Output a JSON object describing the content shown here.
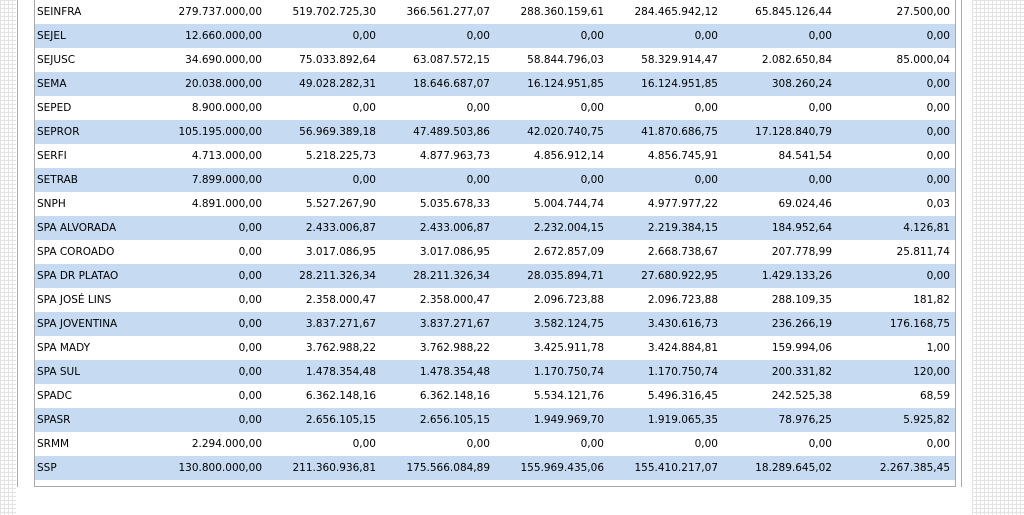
{
  "table": {
    "rows": [
      {
        "name": "SEINFRA",
        "values": [
          "279.737.000,00",
          "519.702.725,30",
          "366.561.277,07",
          "288.360.159,61",
          "284.465.942,12",
          "65.845.126,44",
          "27.500,00"
        ]
      },
      {
        "name": "SEJEL",
        "values": [
          "12.660.000,00",
          "0,00",
          "0,00",
          "0,00",
          "0,00",
          "0,00",
          "0,00"
        ]
      },
      {
        "name": "SEJUSC",
        "values": [
          "34.690.000,00",
          "75.033.892,64",
          "63.087.572,15",
          "58.844.796,03",
          "58.329.914,47",
          "2.082.650,84",
          "85.000,04"
        ]
      },
      {
        "name": "SEMA",
        "values": [
          "20.038.000,00",
          "49.028.282,31",
          "18.646.687,07",
          "16.124.951,85",
          "16.124.951,85",
          "308.260,24",
          "0,00"
        ]
      },
      {
        "name": "SEPED",
        "values": [
          "8.900.000,00",
          "0,00",
          "0,00",
          "0,00",
          "0,00",
          "0,00",
          "0,00"
        ]
      },
      {
        "name": "SEPROR",
        "values": [
          "105.195.000,00",
          "56.969.389,18",
          "47.489.503,86",
          "42.020.740,75",
          "41.870.686,75",
          "17.128.840,79",
          "0,00"
        ]
      },
      {
        "name": "SERFI",
        "values": [
          "4.713.000,00",
          "5.218.225,73",
          "4.877.963,73",
          "4.856.912,14",
          "4.856.745,91",
          "84.541,54",
          "0,00"
        ]
      },
      {
        "name": "SETRAB",
        "values": [
          "7.899.000,00",
          "0,00",
          "0,00",
          "0,00",
          "0,00",
          "0,00",
          "0,00"
        ]
      },
      {
        "name": "SNPH",
        "values": [
          "4.891.000,00",
          "5.527.267,90",
          "5.035.678,33",
          "5.004.744,74",
          "4.977.977,22",
          "69.024,46",
          "0,03"
        ]
      },
      {
        "name": "SPA ALVORADA",
        "values": [
          "0,00",
          "2.433.006,87",
          "2.433.006,87",
          "2.232.004,15",
          "2.219.384,15",
          "184.952,64",
          "4.126,81"
        ]
      },
      {
        "name": "SPA COROADO",
        "values": [
          "0,00",
          "3.017.086,95",
          "3.017.086,95",
          "2.672.857,09",
          "2.668.738,67",
          "207.778,99",
          "25.811,74"
        ]
      },
      {
        "name": "SPA DR PLATAO",
        "values": [
          "0,00",
          "28.211.326,34",
          "28.211.326,34",
          "28.035.894,71",
          "27.680.922,95",
          "1.429.133,26",
          "0,00"
        ]
      },
      {
        "name": "SPA JOSÉ LINS",
        "values": [
          "0,00",
          "2.358.000,47",
          "2.358.000,47",
          "2.096.723,88",
          "2.096.723,88",
          "288.109,35",
          "181,82"
        ]
      },
      {
        "name": "SPA JOVENTINA",
        "values": [
          "0,00",
          "3.837.271,67",
          "3.837.271,67",
          "3.582.124,75",
          "3.430.616,73",
          "236.266,19",
          "176.168,75"
        ]
      },
      {
        "name": "SPA MADY",
        "values": [
          "0,00",
          "3.762.988,22",
          "3.762.988,22",
          "3.425.911,78",
          "3.424.884,81",
          "159.994,06",
          "1,00"
        ]
      },
      {
        "name": "SPA SUL",
        "values": [
          "0,00",
          "1.478.354,48",
          "1.478.354,48",
          "1.170.750,74",
          "1.170.750,74",
          "200.331,82",
          "120,00"
        ]
      },
      {
        "name": "SPADC",
        "values": [
          "0,00",
          "6.362.148,16",
          "6.362.148,16",
          "5.534.121,76",
          "5.496.316,45",
          "242.525,38",
          "68,59"
        ]
      },
      {
        "name": "SPASR",
        "values": [
          "0,00",
          "2.656.105,15",
          "2.656.105,15",
          "1.949.969,70",
          "1.919.065,35",
          "78.976,25",
          "5.925,82"
        ]
      },
      {
        "name": "SRMM",
        "values": [
          "2.294.000,00",
          "0,00",
          "0,00",
          "0,00",
          "0,00",
          "0,00",
          "0,00"
        ]
      },
      {
        "name": "SSP",
        "values": [
          "130.800.000,00",
          "211.360.936,81",
          "175.566.084,89",
          "155.969.435,06",
          "155.410.217,07",
          "18.289.645,02",
          "2.267.385,45"
        ]
      }
    ]
  },
  "colors": {
    "row_alt": "#c6dbf1",
    "row_base": "#ffffff",
    "border": "#a9a9a9"
  }
}
